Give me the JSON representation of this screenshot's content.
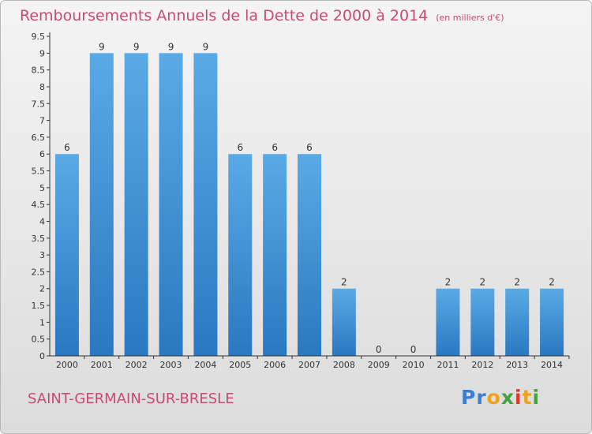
{
  "title": "Remboursements Annuels de la Dette de 2000 à 2014",
  "unit": "(en milliers d'€)",
  "commune": "SAINT-GERMAIN-SUR-BRESLE",
  "brand": "Proxiti",
  "colors": {
    "title": "#c84a78",
    "bar_top": "#5aaae6",
    "bar_bottom": "#2a78c0",
    "axis": "#333333"
  },
  "chart_data": {
    "type": "bar",
    "categories": [
      "2000",
      "2001",
      "2002",
      "2003",
      "2004",
      "2005",
      "2006",
      "2007",
      "2008",
      "2009",
      "2010",
      "2011",
      "2012",
      "2013",
      "2014"
    ],
    "values": [
      6,
      9,
      9,
      9,
      9,
      6,
      6,
      6,
      2,
      0,
      0,
      2,
      2,
      2,
      2
    ],
    "data_labels": [
      "6",
      "9",
      "9",
      "9",
      "9",
      "6",
      "6",
      "6",
      "2",
      "0",
      "0",
      "2",
      "2",
      "2",
      "2"
    ],
    "ylim": [
      0,
      9.5
    ],
    "yticks": [
      0,
      0.5,
      1,
      1.5,
      2,
      2.5,
      3,
      3.5,
      4,
      4.5,
      5,
      5.5,
      6,
      6.5,
      7,
      7.5,
      8,
      8.5,
      9,
      9.5
    ],
    "ytick_labels": [
      "0",
      "0.5",
      "1",
      "1.5",
      "2",
      "2.5",
      "3",
      "3.5",
      "4",
      "4.5",
      "5",
      "5.5",
      "6",
      "6.5",
      "7",
      "7.5",
      "8",
      "8.5",
      "9",
      "9.5"
    ],
    "grid": false,
    "legend": "none"
  }
}
